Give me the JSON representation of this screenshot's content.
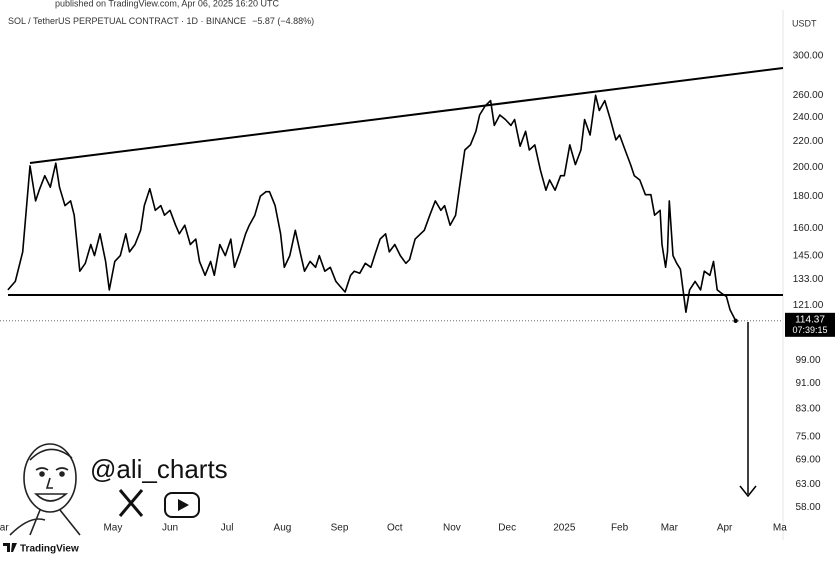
{
  "header": {
    "published": "published on TradingView.com, Apr 06, 2025 16:20 UTC",
    "symbol": "SOL / TetherUS PERPETUAL CONTRACT · 1D · BINANCE",
    "change": "−5.87 (−4.88%)",
    "currency": "USDT"
  },
  "watermark": {
    "handle": "@ali_charts"
  },
  "footer": {
    "brand": "TradingView"
  },
  "chart_data": {
    "type": "line",
    "log_scale": true,
    "grid": false,
    "countdown": "07:39:15",
    "xlim": [
      -4.3,
      420.7
    ],
    "ylim": [
      56.4,
      349.5
    ],
    "xticks": [
      {
        "value": -2,
        "label": "ar"
      },
      {
        "value": 57,
        "label": "May"
      },
      {
        "value": 88,
        "label": "Jun"
      },
      {
        "value": 119,
        "label": "Jul"
      },
      {
        "value": 149,
        "label": "Aug"
      },
      {
        "value": 180,
        "label": "Sep"
      },
      {
        "value": 210,
        "label": "Oct"
      },
      {
        "value": 241,
        "label": "Nov"
      },
      {
        "value": 271,
        "label": "Dec"
      },
      {
        "value": 302,
        "label": "2025"
      },
      {
        "value": 332,
        "label": "Feb"
      },
      {
        "value": 359,
        "label": "Mar"
      },
      {
        "value": 389,
        "label": "Apr"
      },
      {
        "value": 419,
        "label": "Ma"
      }
    ],
    "yticks": [
      {
        "value": 300,
        "label": "300.00"
      },
      {
        "value": 260,
        "label": "260.00"
      },
      {
        "value": 240,
        "label": "240.00"
      },
      {
        "value": 220,
        "label": "220.00"
      },
      {
        "value": 200,
        "label": "200.00"
      },
      {
        "value": 180,
        "label": "180.00"
      },
      {
        "value": 160,
        "label": "160.00"
      },
      {
        "value": 145,
        "label": "145.00"
      },
      {
        "value": 133,
        "label": "133.00"
      },
      {
        "value": 121,
        "label": "121.00"
      },
      {
        "value": 99,
        "label": "99.00"
      },
      {
        "value": 91,
        "label": "91.00"
      },
      {
        "value": 83,
        "label": "83.00"
      },
      {
        "value": 75,
        "label": "75.00"
      },
      {
        "value": 69,
        "label": "69.00"
      },
      {
        "value": 63,
        "label": "63.00"
      },
      {
        "value": 58,
        "label": "58.00"
      }
    ],
    "series": [
      {
        "color": "#000000",
        "x": [
          0,
          4,
          8,
          12,
          15,
          17,
          20,
          23,
          26,
          28,
          31,
          34,
          36,
          39,
          42,
          45,
          47,
          50,
          53,
          55,
          58,
          61,
          64,
          66,
          69,
          72,
          74,
          77,
          80,
          83,
          85,
          88,
          91,
          93,
          96,
          99,
          102,
          104,
          107,
          110,
          112,
          115,
          118,
          121,
          123,
          126,
          129,
          131,
          134,
          137,
          140,
          142,
          145,
          148,
          150,
          153,
          156,
          159,
          161,
          164,
          167,
          169,
          172,
          175,
          178,
          180,
          183,
          186,
          188,
          191,
          194,
          197,
          199,
          202,
          205,
          207,
          210,
          213,
          216,
          218,
          221,
          224,
          226,
          229,
          232,
          235,
          237,
          240,
          243,
          245,
          248,
          251,
          254,
          256,
          259,
          262,
          264,
          267,
          270,
          273,
          275,
          278,
          281,
          283,
          286,
          289,
          292,
          294,
          297,
          300,
          302,
          305,
          308,
          311,
          313,
          316,
          319,
          321,
          324,
          327,
          330,
          332,
          335,
          338,
          340,
          343,
          346,
          349,
          351,
          354,
          355,
          357,
          358,
          359,
          361,
          363,
          365,
          368,
          370,
          373,
          376,
          378,
          381,
          383,
          385,
          388,
          390,
          392,
          395
        ],
        "values": [
          128,
          132,
          147,
          201,
          177,
          184,
          194,
          186,
          203,
          186,
          174,
          177,
          168,
          137,
          141,
          151,
          145,
          157,
          142,
          128,
          142,
          145,
          157,
          147,
          151,
          159,
          174,
          185,
          171,
          174,
          168,
          171,
          162,
          157,
          162,
          151,
          154,
          142,
          135,
          142,
          135,
          151,
          145,
          154,
          139,
          147,
          157,
          162,
          168,
          180,
          183,
          183,
          174,
          157,
          139,
          145,
          159,
          145,
          137,
          142,
          139,
          145,
          137,
          139,
          132,
          130,
          127,
          135,
          137,
          136,
          141,
          139,
          145,
          154,
          157,
          147,
          151,
          145,
          141,
          143,
          154,
          157,
          159,
          168,
          177,
          171,
          174,
          162,
          168,
          185,
          213,
          217,
          228,
          242,
          250,
          255,
          233,
          242,
          238,
          233,
          238,
          216,
          228,
          213,
          217,
          198,
          184,
          191,
          184,
          194,
          194,
          217,
          202,
          213,
          238,
          225,
          260,
          246,
          255,
          238,
          221,
          225,
          213,
          202,
          194,
          191,
          181,
          181,
          168,
          171,
          151,
          139,
          147,
          177,
          145,
          141,
          138,
          118,
          128,
          132,
          128,
          137,
          135,
          142,
          128,
          126,
          125,
          119,
          114.37
        ]
      }
    ]
  }
}
